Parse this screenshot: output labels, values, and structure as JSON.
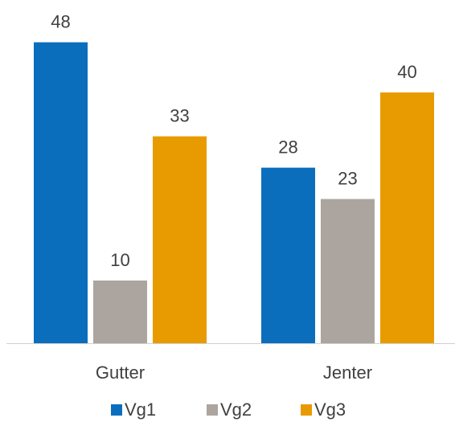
{
  "chart_data": {
    "type": "bar",
    "categories": [
      "Gutter",
      "Jenter"
    ],
    "series": [
      {
        "name": "Vg1",
        "color": "#0a6ebd",
        "values": [
          48,
          28
        ]
      },
      {
        "name": "Vg2",
        "color": "#aca59f",
        "values": [
          10,
          23
        ]
      },
      {
        "name": "Vg3",
        "color": "#e89b00",
        "values": [
          33,
          40
        ]
      }
    ],
    "ylim": [
      0,
      50
    ],
    "legend": "bottom"
  }
}
